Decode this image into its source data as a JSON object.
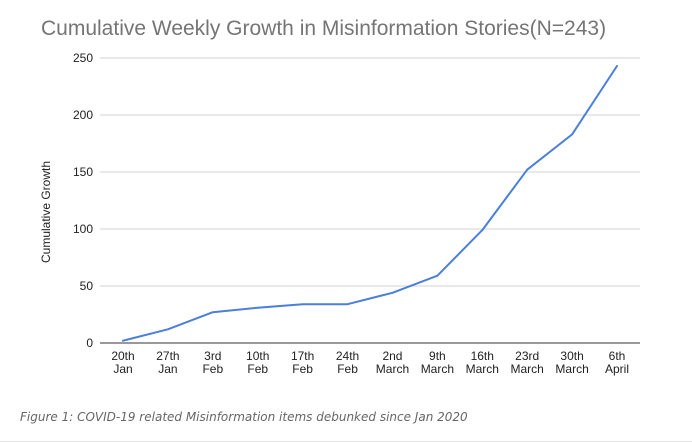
{
  "chart_data": {
    "type": "line",
    "title": "Cumulative Weekly Growth in Misinformation Stories(N=243)",
    "xlabel": "",
    "ylabel": "Cumulative Growth",
    "ylim": [
      0,
      250
    ],
    "yticks": [
      0,
      50,
      100,
      150,
      200,
      250
    ],
    "grid": true,
    "legend": "none",
    "categories": [
      [
        "20th",
        "Jan"
      ],
      [
        "27th",
        "Jan"
      ],
      [
        "3rd",
        "Feb"
      ],
      [
        "10th",
        "Feb"
      ],
      [
        "17th",
        "Feb"
      ],
      [
        "24th",
        "Feb"
      ],
      [
        "2nd",
        "March"
      ],
      [
        "9th",
        "March"
      ],
      [
        "16th",
        "March"
      ],
      [
        "23rd",
        "March"
      ],
      [
        "30th",
        "March"
      ],
      [
        "6th",
        "April"
      ]
    ],
    "series": [
      {
        "name": "Cumulative Growth",
        "values": [
          2,
          12,
          27,
          31,
          34,
          34,
          44,
          59,
          99,
          152,
          183,
          243
        ]
      }
    ],
    "colors": {
      "line": "#4a7fdc",
      "grid": "#d3d3d3",
      "axis": "#333333",
      "title": "#757575"
    }
  },
  "caption": "Figure 1: COVID-19 related Misinformation items debunked since Jan 2020"
}
